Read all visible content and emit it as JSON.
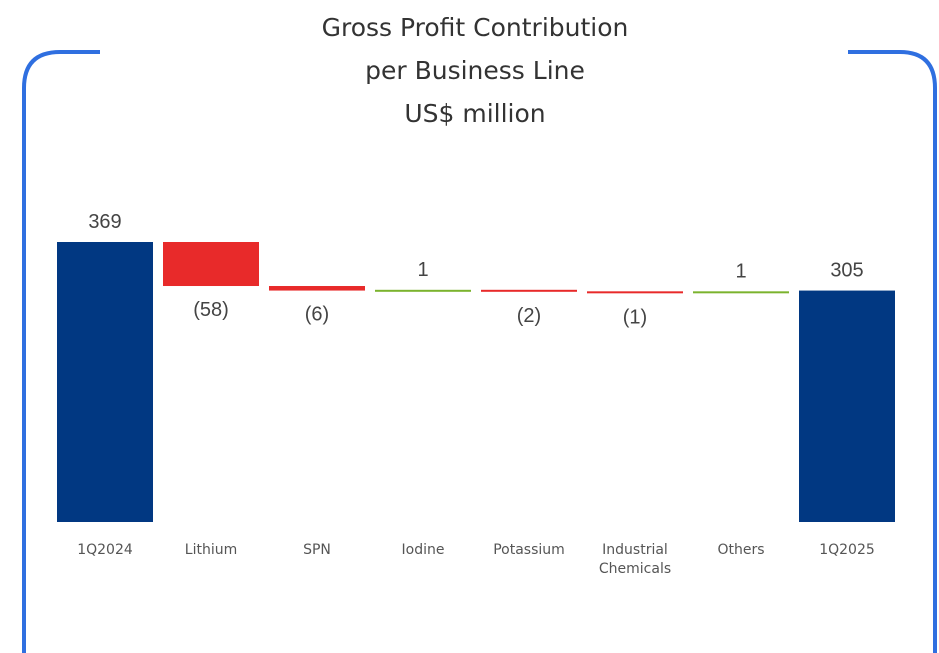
{
  "chart_data": {
    "type": "waterfall",
    "title": [
      "Gross Profit Contribution",
      "per Business Line",
      "US$ million"
    ],
    "categories": [
      "1Q2024",
      "Lithium",
      "SPN",
      "Iodine",
      "Potassium",
      "Industrial Chemicals",
      "Others",
      "1Q2025"
    ],
    "values": [
      369,
      -58,
      -6,
      1,
      -2,
      -1,
      1,
      305
    ],
    "value_labels": [
      "369",
      "(58)",
      "(6)",
      "1",
      "(2)",
      "(1)",
      "1",
      "305"
    ],
    "measures": [
      "total",
      "relative",
      "relative",
      "relative",
      "relative",
      "relative",
      "relative",
      "total"
    ],
    "colors": {
      "total": "#013882",
      "decrease": "#e82a2a",
      "increase": "#7bb32e"
    }
  }
}
